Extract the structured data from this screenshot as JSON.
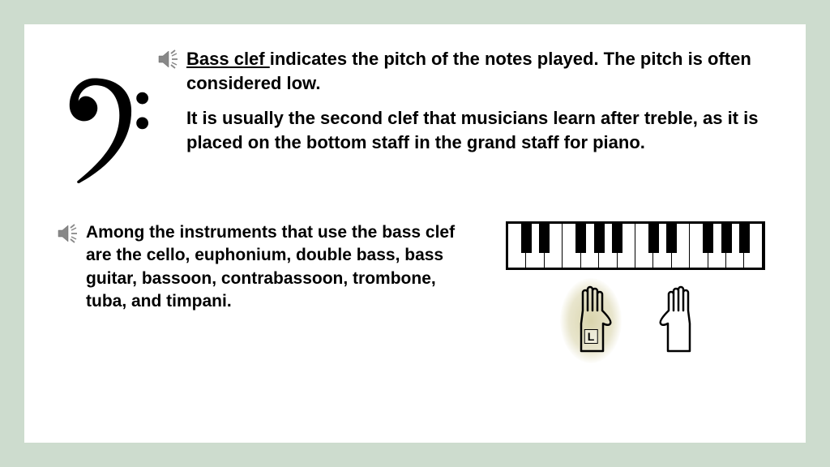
{
  "slide": {
    "background_outer": "#cddcce",
    "background_inner": "#ffffff",
    "para1_lead": "Bass clef ",
    "para1_rest": "indicates the pitch of the notes played. The pitch is often considered low.",
    "para2": "It is usually the second clef that musicians learn after treble, as it is placed on the bottom staff in the grand staff for piano.",
    "para3": "Among the instruments that use the bass clef are the cello, euphonium, double bass, bass guitar, bassoon, contrabassoon, trombone, tuba, and timpani.",
    "left_hand_label": "L",
    "font_size_body": 22,
    "keyboard": {
      "white_keys": 14,
      "black_key_positions_pct": [
        5.0,
        12.1,
        26.4,
        33.6,
        40.7,
        55.0,
        62.1,
        76.4,
        83.6,
        90.7
      ],
      "border_color": "#000000"
    },
    "highlight_color": "rgba(180,170,90,0.45)",
    "speaker_icon_color": "#808080"
  }
}
